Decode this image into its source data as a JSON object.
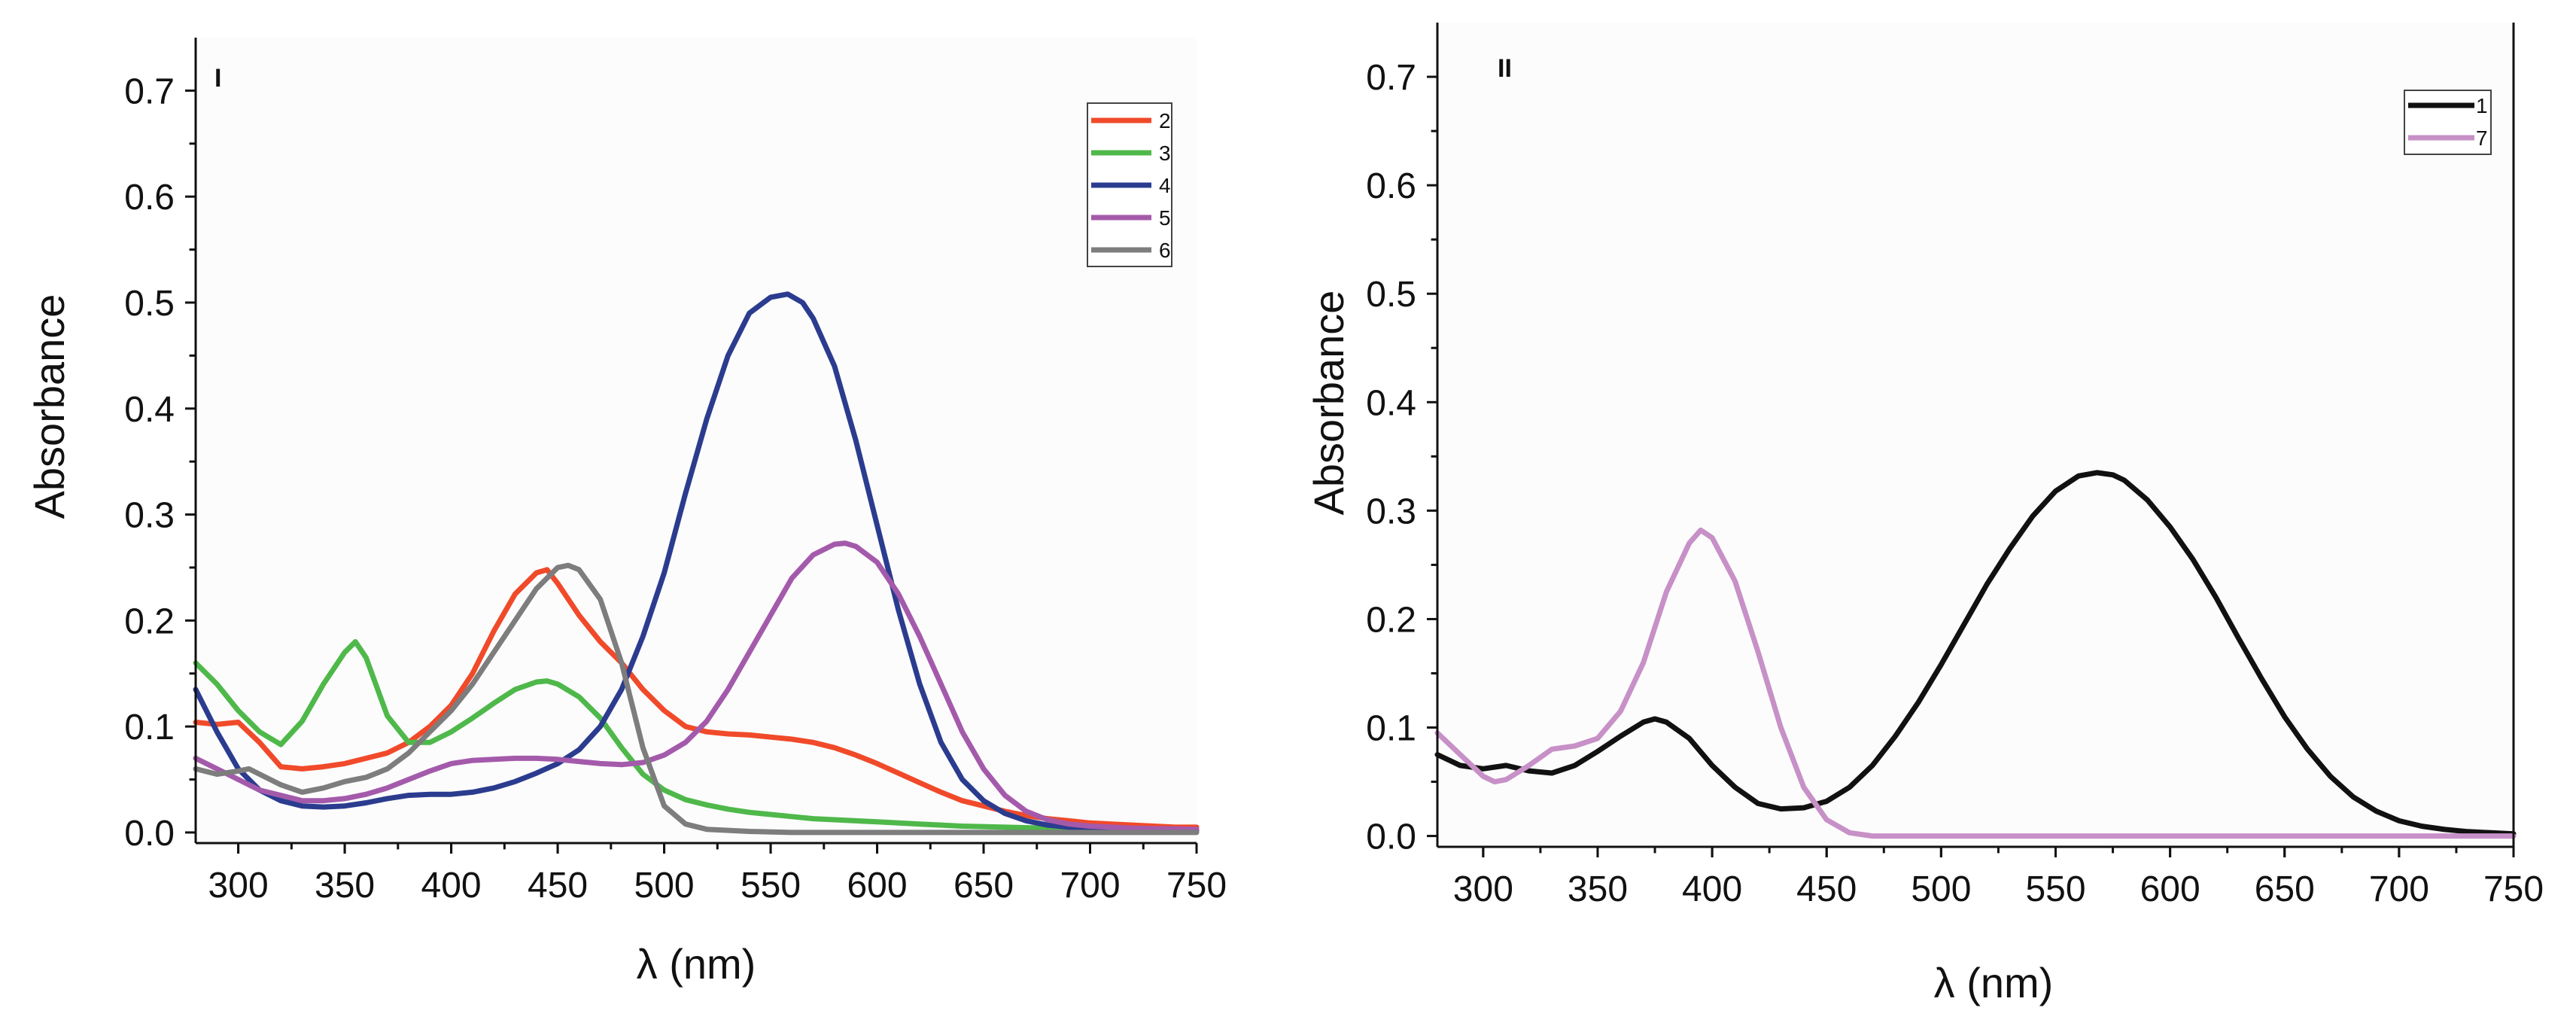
{
  "chart_data": [
    {
      "type": "line",
      "panel_label": "I",
      "xlabel": "λ (nm)",
      "ylabel": "Absorbance",
      "xlim": [
        280,
        750
      ],
      "ylim": [
        -0.01,
        0.75
      ],
      "xticks": [
        300,
        350,
        400,
        450,
        500,
        550,
        600,
        650,
        700,
        750
      ],
      "yticks": [
        0.0,
        0.1,
        0.2,
        0.3,
        0.4,
        0.5,
        0.6,
        0.7
      ],
      "ytick_labels": [
        "0.0",
        "0.1",
        "0.2",
        "0.3",
        "0.4",
        "0.5",
        "0.6",
        "0.7"
      ],
      "legend_position": "top-right",
      "series": [
        {
          "name": "2",
          "color": "#f04a2a",
          "x": [
            280,
            290,
            300,
            310,
            320,
            330,
            340,
            350,
            360,
            370,
            380,
            390,
            400,
            410,
            420,
            430,
            440,
            445,
            450,
            460,
            470,
            480,
            490,
            500,
            510,
            520,
            530,
            540,
            550,
            560,
            570,
            580,
            590,
            600,
            610,
            620,
            630,
            640,
            650,
            660,
            670,
            680,
            690,
            700,
            710,
            720,
            730,
            740,
            750
          ],
          "y": [
            0.104,
            0.102,
            0.104,
            0.085,
            0.062,
            0.06,
            0.062,
            0.065,
            0.07,
            0.075,
            0.085,
            0.1,
            0.12,
            0.15,
            0.19,
            0.225,
            0.245,
            0.248,
            0.235,
            0.205,
            0.18,
            0.16,
            0.135,
            0.115,
            0.1,
            0.095,
            0.093,
            0.092,
            0.09,
            0.088,
            0.085,
            0.08,
            0.073,
            0.065,
            0.056,
            0.047,
            0.038,
            0.03,
            0.025,
            0.02,
            0.016,
            0.013,
            0.011,
            0.009,
            0.008,
            0.007,
            0.006,
            0.005,
            0.005
          ]
        },
        {
          "name": "3",
          "color": "#4fb84a",
          "x": [
            280,
            290,
            300,
            310,
            320,
            330,
            340,
            350,
            355,
            360,
            370,
            380,
            390,
            400,
            410,
            420,
            430,
            440,
            445,
            450,
            460,
            470,
            480,
            490,
            500,
            510,
            520,
            530,
            540,
            550,
            560,
            570,
            580,
            590,
            600,
            620,
            640,
            660,
            680,
            700,
            720,
            750
          ],
          "y": [
            0.16,
            0.14,
            0.115,
            0.095,
            0.083,
            0.105,
            0.14,
            0.17,
            0.18,
            0.165,
            0.11,
            0.085,
            0.085,
            0.095,
            0.108,
            0.122,
            0.135,
            0.142,
            0.143,
            0.14,
            0.128,
            0.108,
            0.08,
            0.055,
            0.04,
            0.031,
            0.026,
            0.022,
            0.019,
            0.017,
            0.015,
            0.013,
            0.012,
            0.011,
            0.01,
            0.008,
            0.006,
            0.005,
            0.004,
            0.003,
            0.003,
            0.002
          ]
        },
        {
          "name": "4",
          "color": "#2b3c8f",
          "x": [
            280,
            290,
            300,
            310,
            320,
            330,
            340,
            350,
            360,
            370,
            380,
            390,
            400,
            410,
            420,
            430,
            440,
            450,
            460,
            470,
            480,
            490,
            500,
            510,
            520,
            530,
            540,
            550,
            558,
            565,
            570,
            580,
            590,
            600,
            610,
            620,
            630,
            640,
            650,
            660,
            670,
            680,
            690,
            700,
            720,
            750
          ],
          "y": [
            0.135,
            0.095,
            0.06,
            0.04,
            0.03,
            0.025,
            0.024,
            0.025,
            0.028,
            0.032,
            0.035,
            0.036,
            0.036,
            0.038,
            0.042,
            0.048,
            0.056,
            0.065,
            0.078,
            0.1,
            0.135,
            0.185,
            0.245,
            0.32,
            0.39,
            0.45,
            0.49,
            0.505,
            0.508,
            0.5,
            0.485,
            0.44,
            0.37,
            0.29,
            0.21,
            0.14,
            0.085,
            0.05,
            0.03,
            0.018,
            0.011,
            0.007,
            0.005,
            0.004,
            0.003,
            0.002
          ]
        },
        {
          "name": "5",
          "color": "#a45aab",
          "x": [
            280,
            290,
            300,
            310,
            320,
            330,
            340,
            350,
            360,
            370,
            380,
            390,
            400,
            410,
            420,
            430,
            440,
            450,
            460,
            470,
            480,
            490,
            500,
            510,
            520,
            530,
            540,
            550,
            560,
            570,
            580,
            585,
            590,
            600,
            610,
            620,
            630,
            640,
            650,
            660,
            670,
            680,
            690,
            700,
            720,
            750
          ],
          "y": [
            0.07,
            0.06,
            0.05,
            0.04,
            0.035,
            0.03,
            0.03,
            0.032,
            0.036,
            0.042,
            0.05,
            0.058,
            0.065,
            0.068,
            0.069,
            0.07,
            0.07,
            0.069,
            0.067,
            0.065,
            0.064,
            0.066,
            0.073,
            0.085,
            0.105,
            0.135,
            0.17,
            0.205,
            0.24,
            0.262,
            0.272,
            0.273,
            0.27,
            0.255,
            0.225,
            0.185,
            0.14,
            0.095,
            0.06,
            0.035,
            0.02,
            0.012,
            0.008,
            0.006,
            0.004,
            0.003
          ]
        },
        {
          "name": "6",
          "color": "#7d7d7d",
          "x": [
            280,
            290,
            300,
            305,
            310,
            320,
            330,
            340,
            350,
            360,
            370,
            380,
            390,
            400,
            410,
            420,
            430,
            440,
            450,
            455,
            460,
            470,
            480,
            490,
            500,
            510,
            520,
            530,
            540,
            560,
            600,
            650,
            700,
            750
          ],
          "y": [
            0.06,
            0.055,
            0.058,
            0.06,
            0.055,
            0.045,
            0.038,
            0.042,
            0.048,
            0.052,
            0.06,
            0.075,
            0.095,
            0.115,
            0.14,
            0.17,
            0.2,
            0.23,
            0.25,
            0.252,
            0.248,
            0.22,
            0.16,
            0.08,
            0.025,
            0.008,
            0.003,
            0.002,
            0.001,
            0.0,
            0.0,
            0.0,
            0.0,
            0.0
          ]
        }
      ]
    },
    {
      "type": "line",
      "panel_label": "II",
      "xlabel": "λ (nm)",
      "ylabel": "Absorbance",
      "xlim": [
        280,
        750
      ],
      "ylim": [
        -0.01,
        0.75
      ],
      "xticks": [
        300,
        350,
        400,
        450,
        500,
        550,
        600,
        650,
        700,
        750
      ],
      "yticks": [
        0.0,
        0.1,
        0.2,
        0.3,
        0.4,
        0.5,
        0.6,
        0.7
      ],
      "ytick_labels": [
        "0.0",
        "0.1",
        "0.2",
        "0.3",
        "0.4",
        "0.5",
        "0.6",
        "0.7"
      ],
      "legend_position": "top-right",
      "series": [
        {
          "name": "1",
          "color": "#111111",
          "x": [
            280,
            290,
            300,
            310,
            320,
            330,
            340,
            350,
            360,
            370,
            375,
            380,
            390,
            400,
            410,
            420,
            430,
            440,
            450,
            460,
            470,
            480,
            490,
            500,
            510,
            520,
            530,
            540,
            550,
            560,
            568,
            575,
            580,
            590,
            600,
            610,
            620,
            630,
            640,
            650,
            660,
            670,
            680,
            690,
            700,
            710,
            720,
            730,
            740,
            750
          ],
          "y": [
            0.075,
            0.065,
            0.062,
            0.065,
            0.06,
            0.058,
            0.065,
            0.078,
            0.092,
            0.105,
            0.108,
            0.105,
            0.09,
            0.065,
            0.045,
            0.03,
            0.025,
            0.026,
            0.032,
            0.045,
            0.065,
            0.092,
            0.123,
            0.158,
            0.195,
            0.232,
            0.265,
            0.295,
            0.318,
            0.332,
            0.335,
            0.333,
            0.328,
            0.31,
            0.285,
            0.255,
            0.22,
            0.182,
            0.145,
            0.11,
            0.08,
            0.055,
            0.036,
            0.023,
            0.014,
            0.009,
            0.006,
            0.004,
            0.003,
            0.002
          ]
        },
        {
          "name": "7",
          "color": "#c790c7",
          "x": [
            280,
            290,
            300,
            305,
            310,
            320,
            330,
            340,
            350,
            360,
            370,
            380,
            390,
            395,
            400,
            410,
            420,
            430,
            440,
            450,
            460,
            470,
            480,
            500,
            550,
            600,
            650,
            700,
            750
          ],
          "y": [
            0.095,
            0.075,
            0.055,
            0.05,
            0.052,
            0.065,
            0.08,
            0.083,
            0.09,
            0.115,
            0.16,
            0.225,
            0.27,
            0.282,
            0.275,
            0.235,
            0.17,
            0.1,
            0.045,
            0.015,
            0.003,
            0.0,
            0.0,
            0.0,
            0.0,
            0.0,
            0.0,
            0.0,
            0.0
          ]
        }
      ]
    }
  ]
}
